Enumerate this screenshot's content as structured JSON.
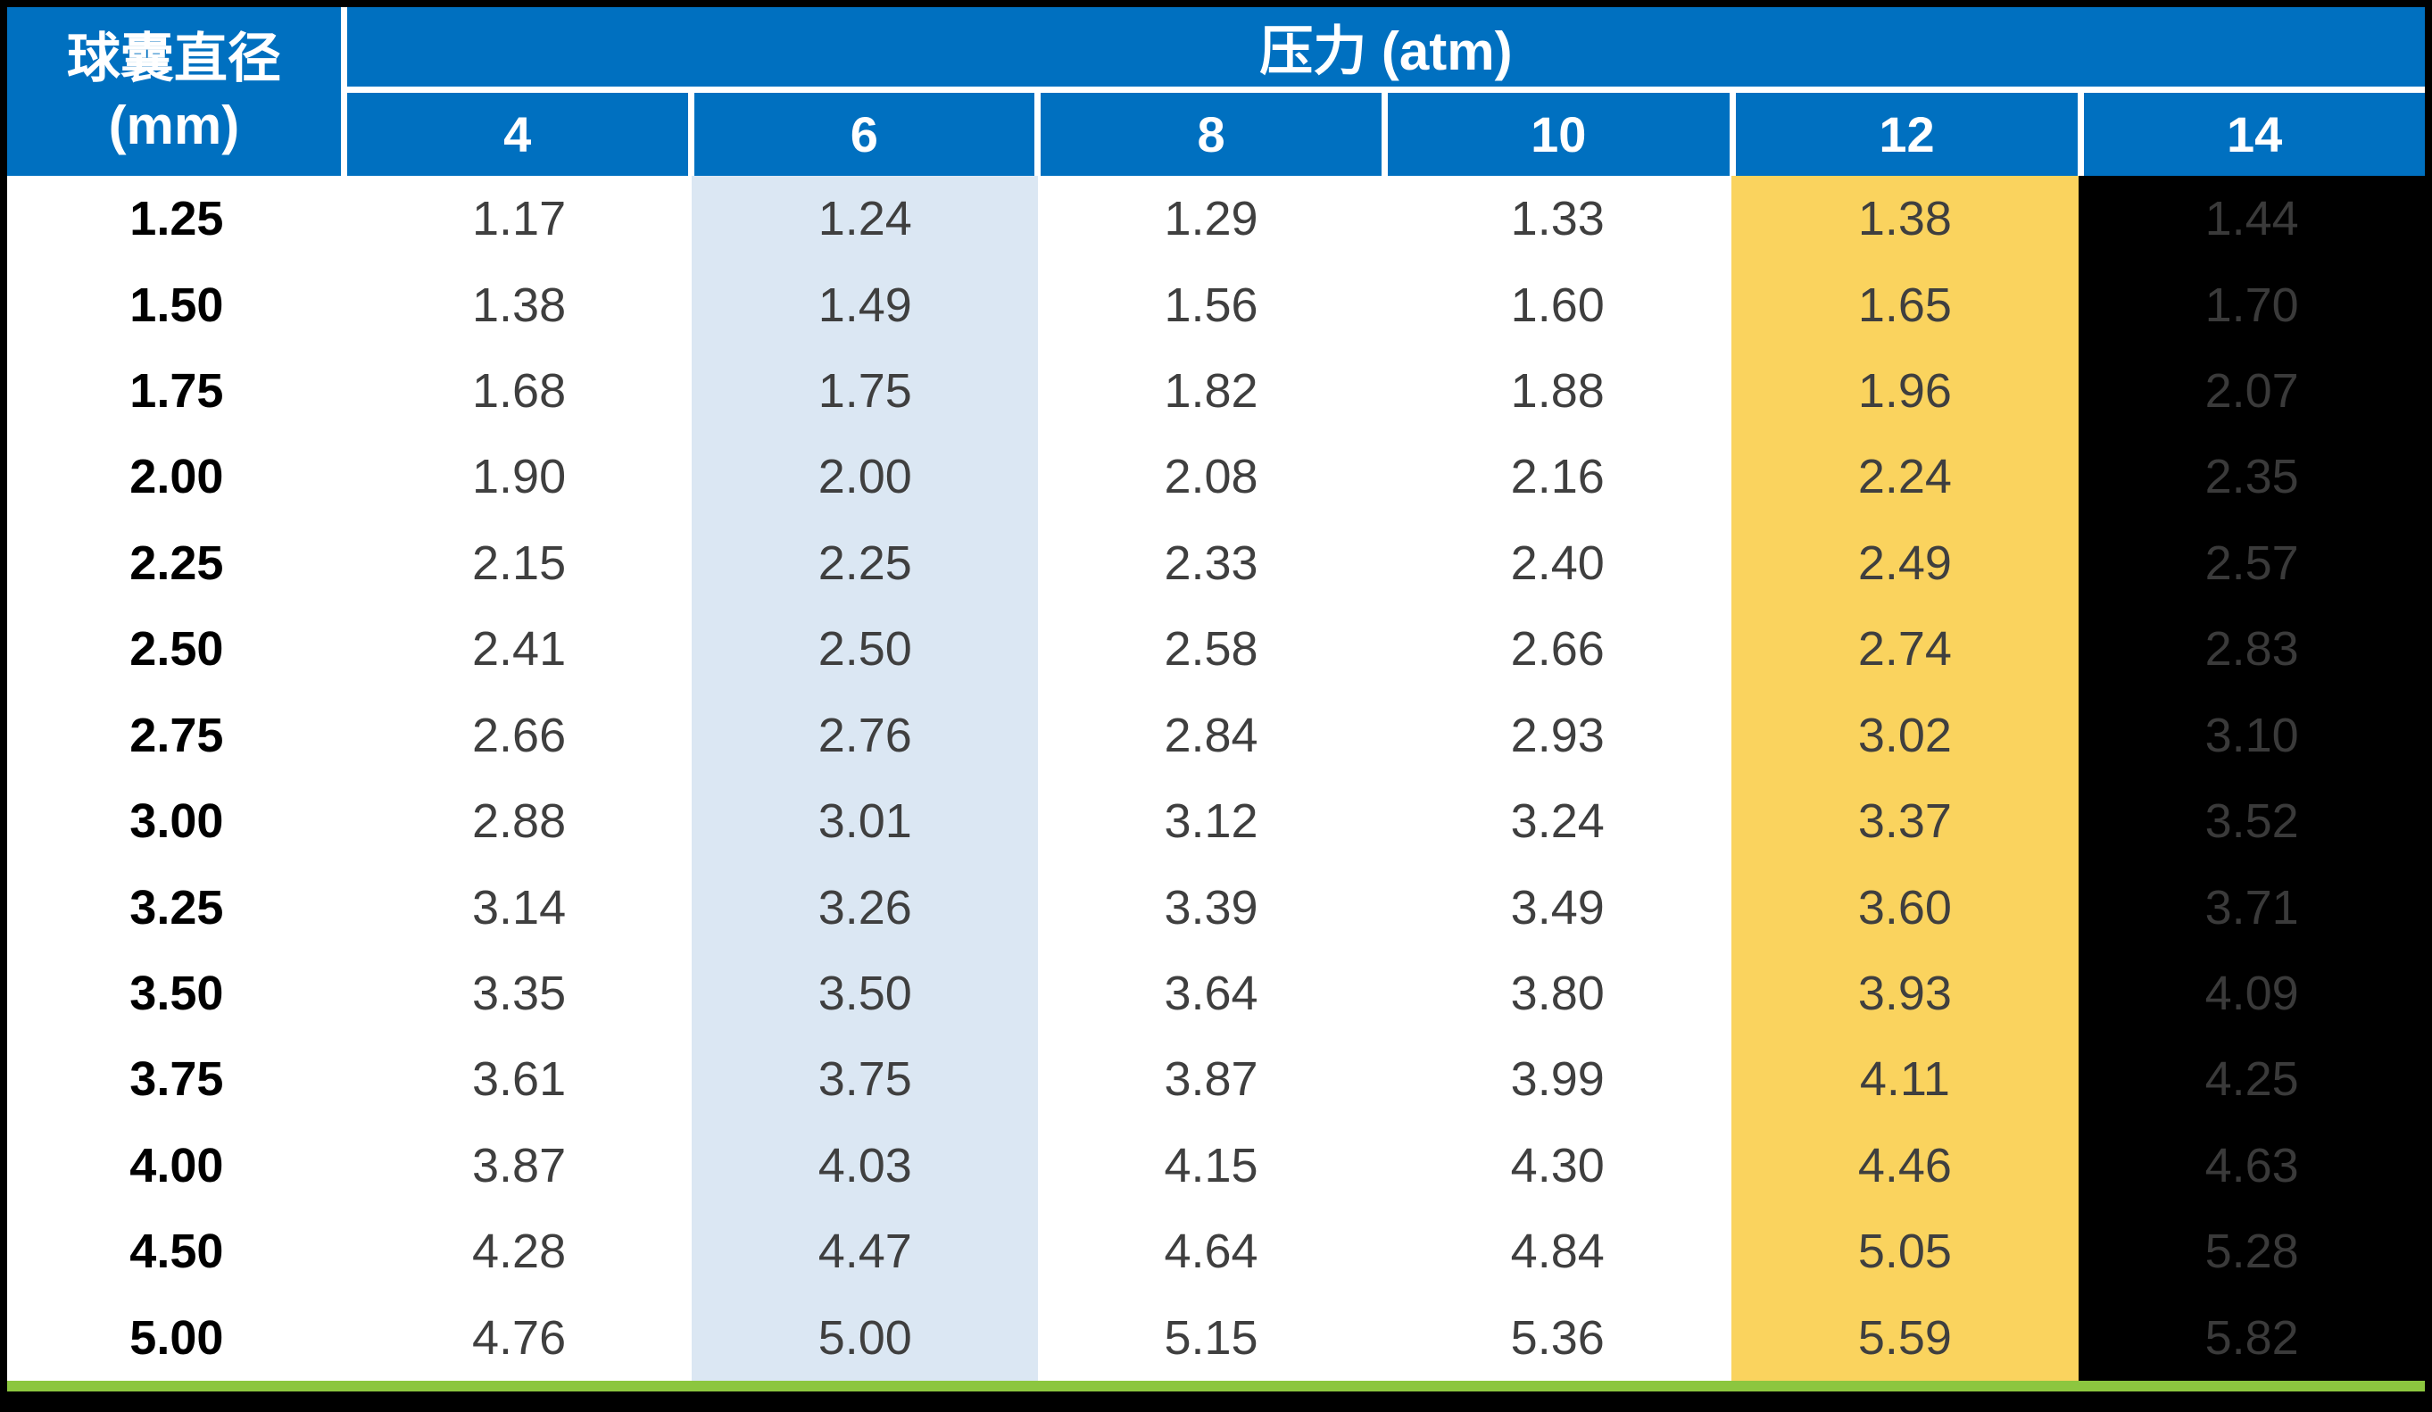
{
  "table": {
    "diameter_header_line1": "球囊直径",
    "diameter_header_line2": "(mm)",
    "pressure_group_header": "压力 (atm)",
    "pressure_columns": [
      "4",
      "6",
      "8",
      "10",
      "12",
      "14"
    ],
    "rows": [
      {
        "diameter": "1.25",
        "values": [
          "1.17",
          "1.24",
          "1.29",
          "1.33",
          "1.38",
          "1.44"
        ]
      },
      {
        "diameter": "1.50",
        "values": [
          "1.38",
          "1.49",
          "1.56",
          "1.60",
          "1.65",
          "1.70"
        ]
      },
      {
        "diameter": "1.75",
        "values": [
          "1.68",
          "1.75",
          "1.82",
          "1.88",
          "1.96",
          "2.07"
        ]
      },
      {
        "diameter": "2.00",
        "values": [
          "1.90",
          "2.00",
          "2.08",
          "2.16",
          "2.24",
          "2.35"
        ]
      },
      {
        "diameter": "2.25",
        "values": [
          "2.15",
          "2.25",
          "2.33",
          "2.40",
          "2.49",
          "2.57"
        ]
      },
      {
        "diameter": "2.50",
        "values": [
          "2.41",
          "2.50",
          "2.58",
          "2.66",
          "2.74",
          "2.83"
        ]
      },
      {
        "diameter": "2.75",
        "values": [
          "2.66",
          "2.76",
          "2.84",
          "2.93",
          "3.02",
          "3.10"
        ]
      },
      {
        "diameter": "3.00",
        "values": [
          "2.88",
          "3.01",
          "3.12",
          "3.24",
          "3.37",
          "3.52"
        ]
      },
      {
        "diameter": "3.25",
        "values": [
          "3.14",
          "3.26",
          "3.39",
          "3.49",
          "3.60",
          "3.71"
        ]
      },
      {
        "diameter": "3.50",
        "values": [
          "3.35",
          "3.50",
          "3.64",
          "3.80",
          "3.93",
          "4.09"
        ]
      },
      {
        "diameter": "3.75",
        "values": [
          "3.61",
          "3.75",
          "3.87",
          "3.99",
          "4.11",
          "4.25"
        ]
      },
      {
        "diameter": "4.00",
        "values": [
          "3.87",
          "4.03",
          "4.15",
          "4.30",
          "4.46",
          "4.63"
        ]
      },
      {
        "diameter": "4.50",
        "values": [
          "4.28",
          "4.47",
          "4.64",
          "4.84",
          "5.05",
          "5.28"
        ]
      },
      {
        "diameter": "5.00",
        "values": [
          "4.76",
          "5.00",
          "5.15",
          "5.36",
          "5.59",
          "5.82"
        ]
      }
    ]
  },
  "chart_data": {
    "type": "table",
    "title": "压力 (atm)",
    "row_header_label": "球囊直径 (mm)",
    "column_group_label": "压力 (atm)",
    "columns": [
      4,
      6,
      8,
      10,
      12,
      14
    ],
    "row_categories": [
      1.25,
      1.5,
      1.75,
      2.0,
      2.25,
      2.5,
      2.75,
      3.0,
      3.25,
      3.5,
      3.75,
      4.0,
      4.5,
      5.0
    ],
    "values": [
      [
        1.17,
        1.24,
        1.29,
        1.33,
        1.38,
        1.44
      ],
      [
        1.38,
        1.49,
        1.56,
        1.6,
        1.65,
        1.7
      ],
      [
        1.68,
        1.75,
        1.82,
        1.88,
        1.96,
        2.07
      ],
      [
        1.9,
        2.0,
        2.08,
        2.16,
        2.24,
        2.35
      ],
      [
        2.15,
        2.25,
        2.33,
        2.4,
        2.49,
        2.57
      ],
      [
        2.41,
        2.5,
        2.58,
        2.66,
        2.74,
        2.83
      ],
      [
        2.66,
        2.76,
        2.84,
        2.93,
        3.02,
        3.1
      ],
      [
        2.88,
        3.01,
        3.12,
        3.24,
        3.37,
        3.52
      ],
      [
        3.14,
        3.26,
        3.39,
        3.49,
        3.6,
        3.71
      ],
      [
        3.35,
        3.5,
        3.64,
        3.8,
        3.93,
        4.09
      ],
      [
        3.61,
        3.75,
        3.87,
        3.99,
        4.11,
        4.25
      ],
      [
        3.87,
        4.03,
        4.15,
        4.3,
        4.46,
        4.63
      ],
      [
        4.28,
        4.47,
        4.64,
        4.84,
        5.05,
        5.28
      ],
      [
        4.76,
        5.0,
        5.15,
        5.36,
        5.59,
        5.82
      ]
    ],
    "highlighted_columns": {
      "6": "light-blue",
      "12": "yellow",
      "14": "black"
    }
  },
  "colors": {
    "header_blue": "#0070C0",
    "column_6_highlight": "#DBE7F3",
    "column_12_highlight": "#FAD35E",
    "column_14_background": "#000000",
    "column_14_text": "#3A3A3A",
    "data_text": "#3F3F3F",
    "footer_green": "#8CC63F",
    "frame_black": "#000000"
  }
}
